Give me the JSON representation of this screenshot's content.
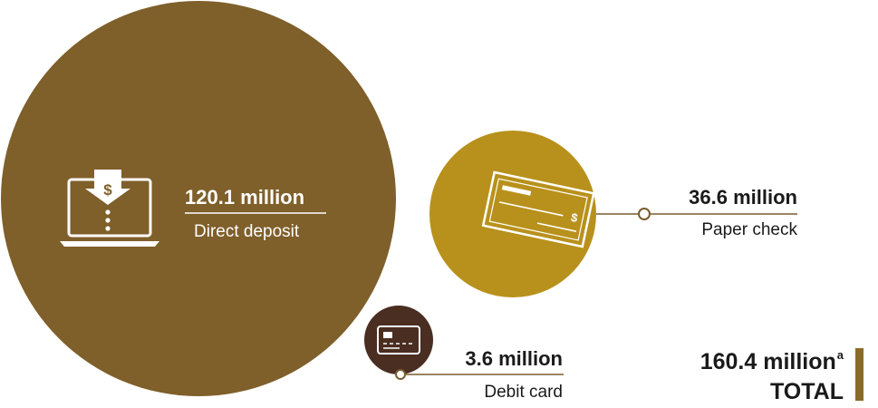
{
  "colors": {
    "direct_deposit": "#7f5f2a",
    "paper_check": "#b8911c",
    "debit_card": "#4a2e22",
    "total_bar": "#8a6a2a",
    "connector": "#7a5c2e"
  },
  "icons": {
    "direct_deposit": "laptop-dollar-icon",
    "paper_check": "check-icon",
    "debit_card": "credit-card-icon"
  },
  "chart_data": {
    "type": "bubble",
    "unit": "million",
    "items": [
      {
        "key": "direct_deposit",
        "value": 120.1,
        "value_label": "120.1 million",
        "label": "Direct deposit"
      },
      {
        "key": "paper_check",
        "value": 36.6,
        "value_label": "36.6 million",
        "label": "Paper check"
      },
      {
        "key": "debit_card",
        "value": 3.6,
        "value_label": "3.6 million",
        "label": "Debit card"
      }
    ],
    "total": {
      "value": 160.4,
      "value_label": "160.4 million",
      "footnote_marker": "a",
      "label": "TOTAL"
    }
  }
}
